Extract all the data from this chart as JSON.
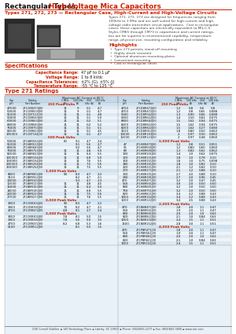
{
  "title_black": "Rectangular Types, ",
  "title_red": "High-Voltage Mica Capacitors",
  "subtitle": "Types 271, 272, 273 — Rectangular Case, High-Current and High-Voltage Circuits",
  "body_lines": [
    "Types 271, 272, 273 are designed for frequencies ranging from",
    "100kHz to 3 MHz and are well suited for high-current and high-",
    "voltage radio transmitter circuit applications.  Cast in rectangular",
    "cases, these capacitors are electrically equivalent to MIL-C-5",
    "Styles CM65 through CM73 in capacitance and current ratings,",
    "but are far superior in environmental capability, temperature",
    "range, physical size, mounting configuration and reliability."
  ],
  "highlights_title": "Highlights",
  "highlights": [
    "Type 273 permits stand-off mounting",
    "Highly shock resistant",
    "Optional aluminum mounting plates",
    "Convenient mounting",
    "Cast in rectangular cases"
  ],
  "specs_title": "Specifications",
  "specs": [
    [
      "Capacitance Range:",
      "47 pF to 0.1 μF"
    ],
    [
      "Voltage Range:",
      "1 to 8 kVdc"
    ],
    [
      "Capacitance Tolerances:",
      "±2% (G), ±5% (J)"
    ],
    [
      "Temperature Range:",
      "-55 °C to 125 °C"
    ]
  ],
  "type271_title": "Type 271 Ratings",
  "col_labels_left": [
    "Cap\n(pF)",
    "Catalog\nPart Number",
    "1 MHz\n(A)",
    "500 kHz\n(A)",
    "~100 kHz\n(A)",
    "100 kHz\n(A)"
  ],
  "col_labels_right": [
    "Cap\n(pF)",
    "Catalog\nPart Number",
    "1 MHz\n(A)",
    "500 kHz\n(A)",
    "~100 kHz\n(A)",
    "100 kHz\n(A)"
  ],
  "table_rows_left": [
    [
      "sect",
      "250 Peak Volts"
    ],
    [
      "47000",
      "271CBR473J00",
      "11",
      "9",
      "0.1",
      "4.7"
    ],
    [
      "50000",
      "271CBR503J00",
      "11",
      "9",
      "0.1",
      "4.7"
    ],
    [
      "51000",
      "271CBT513J00",
      "11",
      "11",
      "0.1",
      "4.8"
    ],
    [
      "56000",
      "271CBR563J00",
      "11",
      "11",
      "0.1",
      "5.0"
    ],
    [
      "60000",
      "271CBR603J00",
      "11",
      "11",
      "0.2",
      "5.1"
    ],
    [
      "68000",
      "271CBR683J00",
      "11",
      "11",
      "0.2",
      "5.2"
    ],
    [
      "75000",
      "271CBR753J00",
      "11",
      "11",
      "0.1",
      "5.1"
    ],
    [
      "82000",
      "271CBR823J00",
      "11",
      "11",
      "0.1",
      "4.5"
    ],
    [
      "100000",
      "271CBT104J00",
      "11",
      "11",
      "0.1",
      "4.7"
    ],
    [
      "sect",
      "500 Peak Volts"
    ],
    [
      "50000",
      "271SBR503J00",
      "60",
      "9.1",
      "4.7",
      "2.4"
    ],
    [
      "51000",
      "271SBR513J00",
      "",
      "9.1",
      "5.6",
      "2.7"
    ],
    [
      "68000",
      "271SBR683J00",
      "",
      "9.2",
      "5.6",
      "4.7"
    ],
    [
      "75000",
      "271SBR753J00",
      "11",
      "11",
      "4.8",
      "5.0"
    ],
    [
      "82000",
      "271SBR823J00",
      "11",
      "11",
      "6.4",
      "5.5"
    ],
    [
      "100000",
      "271SBR104J00",
      "11",
      "11",
      "6.8",
      "5.0"
    ],
    [
      "150000",
      "271SBR154J00",
      "11",
      "11",
      "7.6",
      "5.5"
    ],
    [
      "200000",
      "271SBR204J00",
      "11",
      "11",
      "7.5",
      "5.6"
    ],
    [
      "250000",
      "271SBR254J00",
      "11",
      "11",
      "7.5",
      "5.5"
    ],
    [
      "sect",
      "1,000 Peak Volts"
    ],
    [
      "8000",
      "271BBR802J00",
      "90",
      "8.3",
      "4.7",
      "2.2"
    ],
    [
      "9100",
      "271BBR912J00",
      "",
      "8.2",
      "4.7",
      "2.1"
    ],
    [
      "10000",
      "271BBR103J00",
      "",
      "9.3",
      "4.7",
      "2.3"
    ],
    [
      "12000",
      "271BBR123J00",
      "11",
      "11",
      "4.8",
      "4.5"
    ],
    [
      "15000",
      "271BBR153J00",
      "11",
      "11",
      "6.4",
      "5.0"
    ],
    [
      "18000",
      "271BBR183J00",
      "11",
      "11",
      "6.8",
      "5.5"
    ],
    [
      "22000",
      "271BBR223J00",
      "11",
      "11",
      "7.5",
      "5.6"
    ],
    [
      "27000",
      "271BBR273J00",
      "11",
      "11",
      "7.6",
      "5.5"
    ],
    [
      "sect",
      "2,000 Peak Volts"
    ],
    [
      "3000",
      "271CBR302J00",
      "90",
      "8.3",
      "4.7",
      "2.2"
    ],
    [
      "3900",
      "271CBR392J00",
      "70",
      "8.2",
      "4.7",
      "2.1"
    ],
    [
      "4700",
      "271CBR472J00",
      "4.8",
      "8.1",
      "2.7",
      "2.4"
    ],
    [
      "sect",
      "2,500 Peak Volts"
    ],
    [
      "3000",
      "271CBR302J00",
      "7.8",
      "8.1",
      "5.0",
      "1.5"
    ],
    [
      "3900",
      "271CBR392J00",
      "7.8",
      "5.6",
      "5.0",
      "1.5"
    ],
    [
      "4700",
      "271CBR472J00",
      "8.2",
      "6.8",
      "5.3",
      "1.6"
    ],
    [
      "5100",
      "271CBR512J00",
      "",
      "8.1",
      "5.0",
      "1.5"
    ]
  ],
  "table_rows_right": [
    [
      "sect",
      "250 Peak Volts"
    ],
    [
      "4700",
      "271DBR472J00",
      "1.2",
      "0.8",
      "0.6",
      "0.8"
    ],
    [
      "4700",
      "271DBR472J00",
      "1.2",
      "0.8",
      "0.65",
      "0.088"
    ],
    [
      "5600",
      "271DBR562J00",
      "1.3",
      "0.90",
      "0.66",
      "0.088"
    ],
    [
      "6200",
      "271DBR622J00",
      "1.4",
      "1.50",
      "0.82",
      "0.075"
    ],
    [
      "6800",
      "271DBR682J00",
      "1.5",
      "1.62",
      "0.94",
      "0.075"
    ],
    [
      "8200",
      "271DBR822J00",
      "1.5",
      "1.62",
      "0.94",
      "0.075"
    ],
    [
      "8200",
      "271DBR822J00",
      "1.5",
      "1.62",
      "0.27",
      "0.080"
    ],
    [
      "9100",
      "271DBR912J00",
      "1.8",
      "0.80",
      "0.50",
      "0.063"
    ],
    [
      "10000",
      "271DBR103J00",
      "2",
      "0.97",
      "0.50",
      "0.063"
    ],
    [
      "12000",
      "271DBR123J00",
      "2",
      "0.97",
      "0.48",
      "0.060"
    ],
    [
      "sect",
      "1,000 Peak Volts"
    ],
    [
      "47",
      "271HBR470J00",
      "1.2",
      "0.8",
      "0.51",
      "0.051"
    ],
    [
      "56",
      "271HBR560J00",
      "1.2",
      "0.80",
      "0.60",
      "0.060"
    ],
    [
      "68",
      "271HBR680J00",
      "1.3",
      "0.82",
      "0.62",
      "0.062"
    ],
    [
      "100",
      "271HBR101J00",
      "1.4",
      "1.0",
      "0.62",
      "0.075"
    ],
    [
      "120",
      "271HBR121J00",
      "1.8",
      "1.0",
      "0.78",
      "0.10"
    ],
    [
      "150",
      "271HBR151J00",
      "1.8",
      "1.0",
      "0.75",
      "0.098"
    ],
    [
      "180",
      "271HBR181J00",
      "1.8",
      "1.0",
      "0.82",
      "0.10"
    ],
    [
      "220",
      "271HBR221J00",
      "2.1",
      "1.2",
      "0.82",
      "0.10"
    ],
    [
      "270",
      "271HBR271J00",
      "2.1",
      "1.2",
      "0.88",
      "0.10"
    ],
    [
      "330",
      "271HBR331J00",
      "2.7",
      "2.0",
      "0.88",
      "0.10"
    ],
    [
      "390",
      "271HBR391J00",
      "2.7",
      "2.0",
      "0.96",
      "0.45"
    ],
    [
      "470",
      "271HBR471J00",
      "3.2",
      "2.0",
      "0.47",
      "0.45"
    ],
    [
      "560",
      "271HBR561J00",
      "3.0",
      "2.0",
      "0.50",
      "0.50"
    ],
    [
      "680",
      "271HBR681J00",
      "3.2",
      "2.0",
      "0.50",
      "0.50"
    ],
    [
      "750",
      "271HBR751J00",
      "3.2",
      "2.0",
      "0.50",
      "0.50"
    ],
    [
      "820",
      "271HBR821J00",
      "3.4",
      "2.2",
      "0.88",
      "0.43"
    ],
    [
      "1000",
      "271HBR102J00",
      "3.4",
      "2.2",
      "0.88",
      "0.43"
    ],
    [
      "1200",
      "271HBR122J00",
      "3.4",
      "2.5",
      "0.88",
      "0.43"
    ],
    [
      "sect",
      "2,000 Peak Volts"
    ],
    [
      "470",
      "271NBR471J00",
      "1.8",
      "2.0",
      "1.1",
      "0.47"
    ],
    [
      "560",
      "271NBR561J00",
      "1.9",
      "2.0",
      "1.1",
      "0.47"
    ],
    [
      "680",
      "271NBR681J00",
      "2.0",
      "2.0",
      "1.0",
      "0.63"
    ],
    [
      "820",
      "271NBR821J00",
      "2.1",
      "1.0",
      "0.84",
      "0.63"
    ],
    [
      "1000",
      "271NBR102J00",
      "2.4",
      "1.5",
      "1.1",
      "0.51"
    ],
    [
      "1500",
      "271NBR152J00",
      "2.8",
      "3.0",
      "1.1",
      "0.51"
    ],
    [
      "sect",
      "4,000 Peak Volts"
    ],
    [
      "470",
      "271PBR471J00",
      "1.8",
      "2.0",
      "1.1",
      "0.47"
    ],
    [
      "560",
      "271PBR561J00",
      "1.9",
      "2.0",
      "1.1",
      "0.47"
    ],
    [
      "680",
      "271PBR681J00",
      "2.0",
      "2.0",
      "1.0",
      "0.63"
    ],
    [
      "820",
      "271PBR821J00",
      "2.1",
      "1.0",
      "0.84",
      "0.63"
    ],
    [
      "1000",
      "271PBR102J00",
      "2.4",
      "1.5",
      "1.1",
      "0.51"
    ]
  ],
  "footer": "CDE Cornell Dubilier ▪ 140 Technology Place ▪ Liberty, SC 29657 ▪ Phone: (864)843-2277 ▪ Fax: (864)843-3800 ▪ www.cde.com",
  "bg_color": "#ffffff",
  "red_color": "#cc2200",
  "dark": "#111111",
  "gray": "#444444",
  "table_header_bg": "#c5d8e8",
  "table_row_bg1": "#ddeaf4",
  "table_row_bg2": "#eef4f8",
  "sect_bg": "#d0e2ee"
}
